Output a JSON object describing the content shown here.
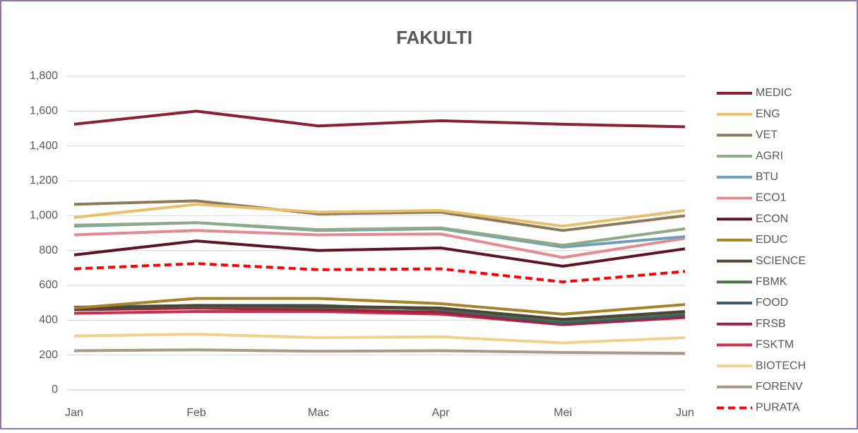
{
  "chart_data": {
    "type": "line",
    "title": "FAKULTI",
    "categories": [
      "Jan",
      "Feb",
      "Mac",
      "Apr",
      "Mei",
      "Jun"
    ],
    "ylim": [
      0,
      1800
    ],
    "yticks": [
      0,
      200,
      400,
      600,
      800,
      {
        "value": 1000,
        "label": "1,000"
      },
      {
        "value": 1200,
        "label": "1,200"
      },
      {
        "value": 1400,
        "label": "1,400"
      },
      {
        "value": 1600,
        "label": "1,600"
      },
      {
        "value": 1800,
        "label": "1,800"
      }
    ],
    "grid": true,
    "legend": "right",
    "series": [
      {
        "name": "MEDIC",
        "color": "#8b2035",
        "values": [
          1525,
          1600,
          1515,
          1545,
          1525,
          1510
        ]
      },
      {
        "name": "ENG",
        "color": "#e8c06a",
        "values": [
          990,
          1065,
          1020,
          1030,
          940,
          1030
        ]
      },
      {
        "name": "VET",
        "color": "#8c7a5a",
        "values": [
          1065,
          1085,
          1010,
          1020,
          915,
          1000
        ]
      },
      {
        "name": "AGRI",
        "color": "#8faa86",
        "values": [
          945,
          960,
          920,
          930,
          830,
          925
        ]
      },
      {
        "name": "BTU",
        "color": "#6f9fbd",
        "values": [
          940,
          960,
          915,
          925,
          820,
          880
        ]
      },
      {
        "name": "ECO1",
        "color": "#e38a95",
        "values": [
          890,
          915,
          890,
          895,
          760,
          870
        ]
      },
      {
        "name": "ECON",
        "color": "#5c1520",
        "values": [
          775,
          855,
          800,
          815,
          710,
          810
        ]
      },
      {
        "name": "EDUC",
        "color": "#a8822a",
        "values": [
          470,
          525,
          525,
          495,
          435,
          490
        ]
      },
      {
        "name": "SCIENCE",
        "color": "#4d4535",
        "values": [
          465,
          485,
          480,
          470,
          405,
          450
        ]
      },
      {
        "name": "FBMK",
        "color": "#4e6e48",
        "values": [
          470,
          480,
          475,
          465,
          395,
          440
        ]
      },
      {
        "name": "FOOD",
        "color": "#3e5a70",
        "values": [
          475,
          485,
          485,
          460,
          385,
          430
        ]
      },
      {
        "name": "FRSB",
        "color": "#a02040",
        "values": [
          460,
          470,
          460,
          445,
          375,
          420
        ]
      },
      {
        "name": "FSKTM",
        "color": "#c8304a",
        "values": [
          440,
          450,
          450,
          435,
          375,
          415
        ]
      },
      {
        "name": "BIOTECH",
        "color": "#f0d28a",
        "values": [
          310,
          320,
          300,
          305,
          270,
          300
        ]
      },
      {
        "name": "FORENV",
        "color": "#a89a85",
        "values": [
          225,
          230,
          222,
          225,
          215,
          210
        ]
      },
      {
        "name": "PURATA",
        "color": "#ff0000",
        "dashed": true,
        "values": [
          695,
          725,
          690,
          695,
          620,
          680
        ]
      }
    ]
  }
}
